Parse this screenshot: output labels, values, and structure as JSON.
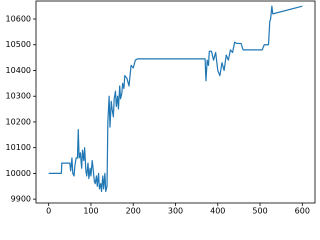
{
  "chart_data": {
    "type": "line",
    "x": [
      0,
      30,
      31,
      50,
      52,
      55,
      57,
      60,
      62,
      65,
      68,
      70,
      72,
      75,
      78,
      80,
      83,
      85,
      88,
      90,
      93,
      95,
      98,
      100,
      103,
      105,
      108,
      110,
      113,
      115,
      118,
      120,
      123,
      125,
      128,
      130,
      133,
      135,
      138,
      140,
      143,
      145,
      148,
      150,
      153,
      155,
      158,
      160,
      163,
      165,
      168,
      170,
      173,
      175,
      178,
      180,
      185,
      190,
      195,
      200,
      205,
      210,
      370,
      372,
      375,
      378,
      380,
      385,
      390,
      395,
      400,
      405,
      410,
      415,
      420,
      425,
      430,
      435,
      440,
      445,
      455,
      460,
      505,
      510,
      520,
      523,
      525,
      528,
      530,
      600
    ],
    "series": [
      {
        "color": "#1f77b4",
        "values": [
          10000,
          10000,
          10040,
          10040,
          10010,
          10060,
          10000,
          9990,
          10030,
          10060,
          10060,
          10170,
          10060,
          10080,
          10020,
          10090,
          10050,
          10100,
          10010,
          9990,
          10040,
          9980,
          10020,
          9990,
          10050,
          10020,
          9970,
          9960,
          9990,
          9950,
          10000,
          9940,
          9960,
          9930,
          9990,
          9940,
          10000,
          9930,
          9950,
          10200,
          10300,
          10180,
          10280,
          10250,
          10220,
          10290,
          10320,
          10260,
          10300,
          10250,
          10340,
          10290,
          10310,
          10350,
          10330,
          10380,
          10370,
          10340,
          10420,
          10410,
          10440,
          10445,
          10445,
          10360,
          10440,
          10420,
          10475,
          10475,
          10440,
          10470,
          10400,
          10380,
          10430,
          10400,
          10460,
          10440,
          10480,
          10470,
          10510,
          10505,
          10505,
          10480,
          10480,
          10500,
          10500,
          10590,
          10600,
          10650,
          10620,
          10650
        ]
      }
    ],
    "xlim": [
      -30,
      630
    ],
    "ylim": [
      9885,
      10670
    ],
    "xticks": [
      0,
      100,
      200,
      300,
      400,
      500,
      600
    ],
    "yticks": [
      9900,
      10000,
      10100,
      10200,
      10300,
      10400,
      10500,
      10600
    ]
  }
}
